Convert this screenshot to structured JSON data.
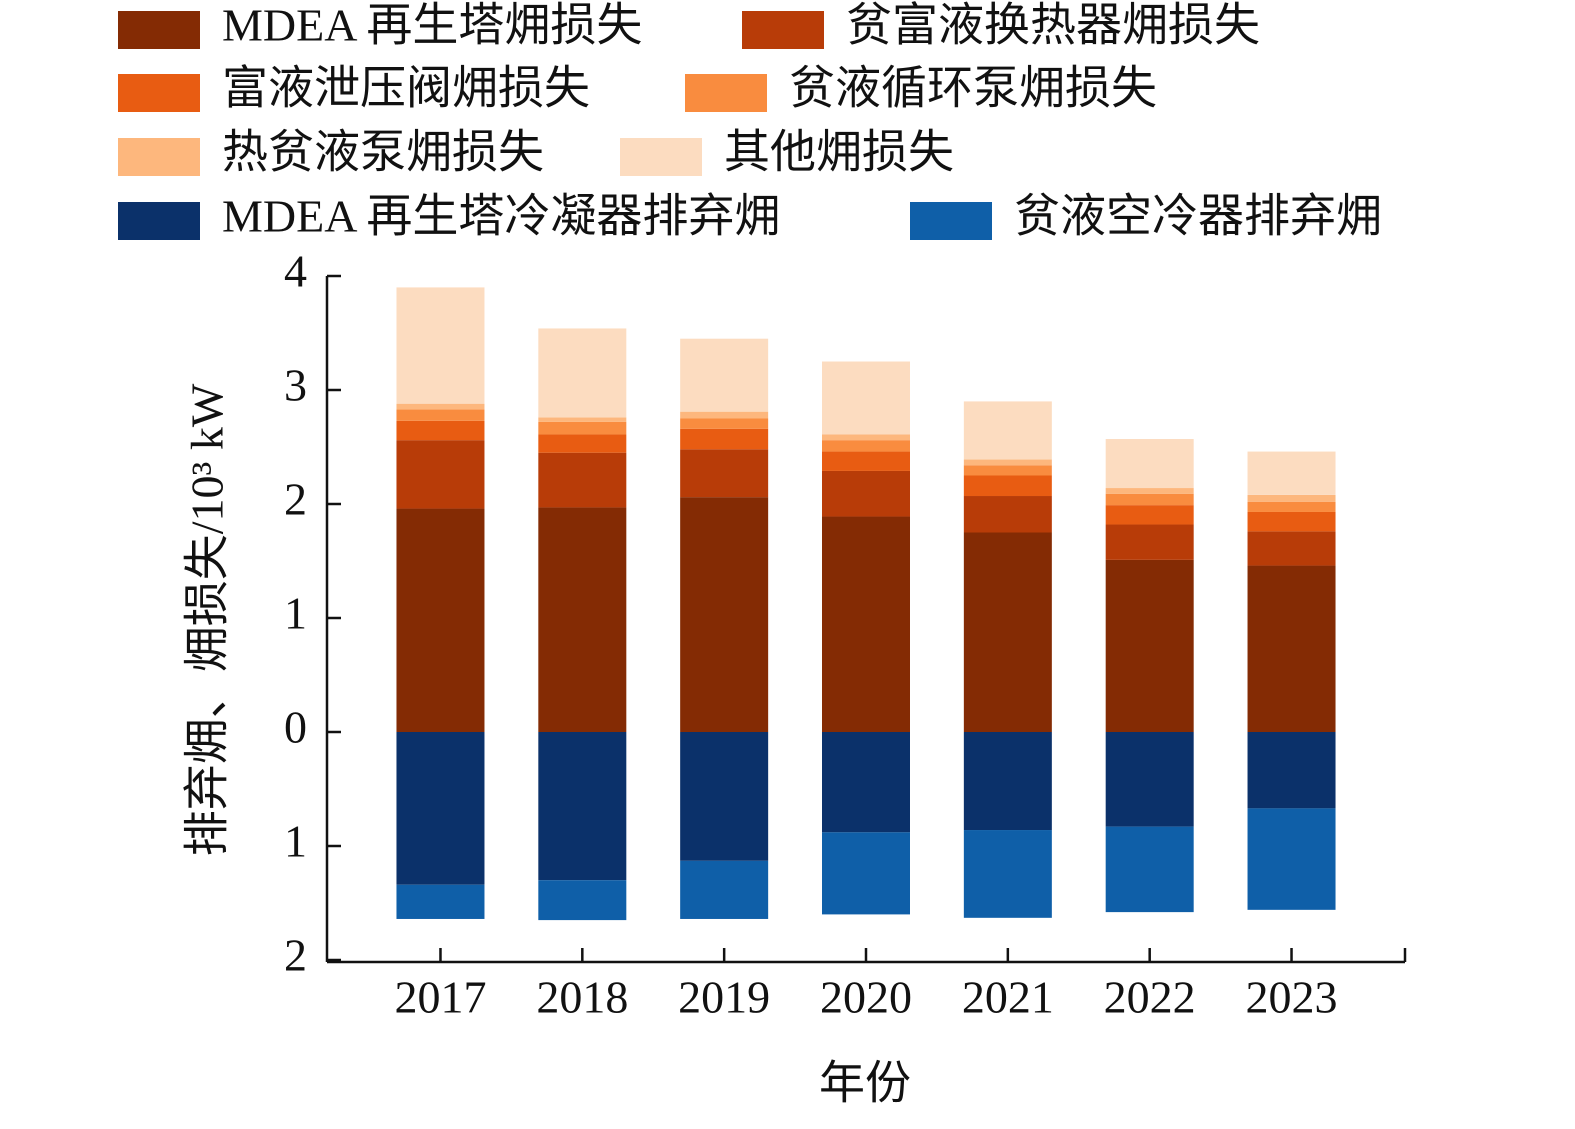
{
  "chart_data": {
    "type": "stacked_bar",
    "xlabel": "年份",
    "ylabel": "排弃㶲、㶲损失/10³ kW",
    "categories": [
      "2017",
      "2018",
      "2019",
      "2020",
      "2021",
      "2022",
      "2023"
    ],
    "series": [
      {
        "name": "MDEA 再生塔㶲损失",
        "color": "#842b04",
        "values": [
          1.96,
          1.97,
          2.06,
          1.89,
          1.75,
          1.51,
          1.46
        ]
      },
      {
        "name": "贫富液换热器㶲损失",
        "color": "#b83c08",
        "values": [
          0.6,
          0.48,
          0.42,
          0.4,
          0.32,
          0.31,
          0.3
        ]
      },
      {
        "name": "富液泄压阀㶲损失",
        "color": "#e85c12",
        "values": [
          0.17,
          0.16,
          0.18,
          0.17,
          0.18,
          0.17,
          0.17
        ]
      },
      {
        "name": "贫液循环泵㶲损失",
        "color": "#f98c3f",
        "values": [
          0.1,
          0.11,
          0.09,
          0.1,
          0.09,
          0.1,
          0.09
        ]
      },
      {
        "name": "热贫液泵㶲损失",
        "color": "#fdb77d",
        "values": [
          0.05,
          0.04,
          0.06,
          0.05,
          0.05,
          0.05,
          0.06
        ]
      },
      {
        "name": "其他㶲损失",
        "color": "#fcdcc0",
        "values": [
          1.02,
          0.78,
          0.64,
          0.64,
          0.51,
          0.43,
          0.38
        ]
      },
      {
        "name": "MDEA 再生塔冷凝器排弃㶲",
        "color": "#0b316a",
        "values": [
          -1.34,
          -1.3,
          -1.13,
          -0.88,
          -0.86,
          -0.83,
          -0.67
        ]
      },
      {
        "name": "贫液空冷器排弃㶲",
        "color": "#0f5fa8",
        "values": [
          -0.3,
          -0.35,
          -0.51,
          -0.72,
          -0.77,
          -0.75,
          -0.89
        ]
      }
    ],
    "ylim": [
      -2,
      4
    ],
    "yticks": [
      {
        "value": -2,
        "label": "2"
      },
      {
        "value": -1,
        "label": "1"
      },
      0,
      1,
      2,
      3,
      4
    ]
  }
}
